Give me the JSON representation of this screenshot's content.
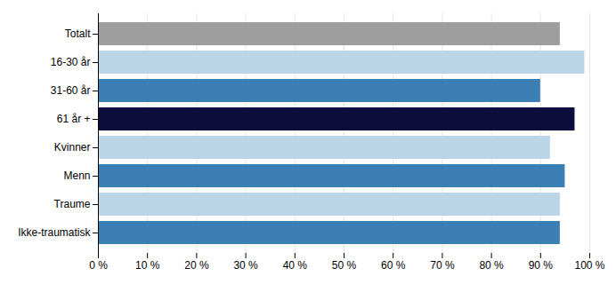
{
  "chart_data": {
    "type": "bar",
    "orientation": "horizontal",
    "categories": [
      "Ikke-traumatisk",
      "Traume",
      "Menn",
      "Kvinner",
      "61 år +",
      "31-60 år",
      "16-30 år",
      "Totalt"
    ],
    "values": [
      94,
      94,
      95,
      92,
      97,
      90,
      99,
      94
    ],
    "colors": [
      "#3b7fb5",
      "#bad4e8",
      "#3b7fb5",
      "#bad4e8",
      "#0d0d3b",
      "#3b7fb5",
      "#bad4e8",
      "#9e9e9e"
    ],
    "xlim": [
      0,
      100
    ],
    "xticks": [
      {
        "value": 0,
        "label": "0 %"
      },
      {
        "value": 10,
        "label": "10 %"
      },
      {
        "value": 20,
        "label": "20 %"
      },
      {
        "value": 30,
        "label": "30 %"
      },
      {
        "value": 40,
        "label": "40 %"
      },
      {
        "value": 50,
        "label": "50 %"
      },
      {
        "value": 60,
        "label": "60 %"
      },
      {
        "value": 70,
        "label": "70 %"
      },
      {
        "value": 80,
        "label": "80 %"
      },
      {
        "value": 90,
        "label": "90 %"
      },
      {
        "value": 100,
        "label": "100 %"
      }
    ],
    "grid": true
  }
}
